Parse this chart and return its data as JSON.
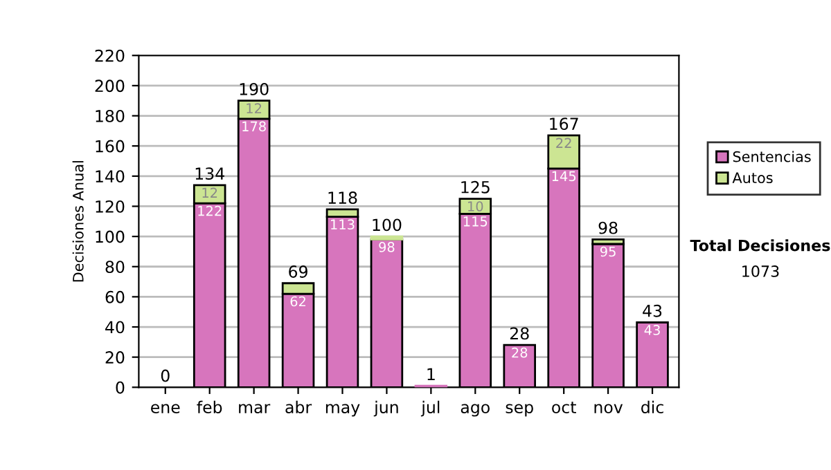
{
  "chart_data": {
    "type": "bar",
    "stacked": true,
    "ylabel": "Decisiones Anual",
    "categories": [
      "ene",
      "feb",
      "mar",
      "abr",
      "may",
      "jun",
      "jul",
      "ago",
      "sep",
      "oct",
      "nov",
      "dic"
    ],
    "series": [
      {
        "name": "Sentencias",
        "color": "#d775bd",
        "values": [
          0,
          122,
          178,
          62,
          113,
          98,
          1,
          115,
          28,
          145,
          95,
          43
        ],
        "value_labels": [
          null,
          "122",
          "178",
          "62",
          "113",
          "98",
          null,
          "115",
          "28",
          "145",
          "95",
          "43"
        ]
      },
      {
        "name": "Autos",
        "color": "#cce593",
        "values": [
          0,
          12,
          12,
          7,
          5,
          2,
          0,
          10,
          0,
          22,
          3,
          0
        ],
        "value_labels": [
          null,
          "12",
          "12",
          null,
          null,
          null,
          null,
          "10",
          null,
          "22",
          null,
          null
        ]
      }
    ],
    "totals": [
      "0",
      "134",
      "190",
      "69",
      "118",
      "100",
      "1",
      "125",
      "28",
      "167",
      "98",
      "43"
    ],
    "ylim": [
      0,
      220
    ],
    "yticks": [
      0,
      20,
      40,
      60,
      80,
      100,
      120,
      140,
      160,
      180,
      200,
      220
    ],
    "grid": "y",
    "legend": "right",
    "annotations": [
      "Total Decisiones",
      "1073"
    ]
  }
}
